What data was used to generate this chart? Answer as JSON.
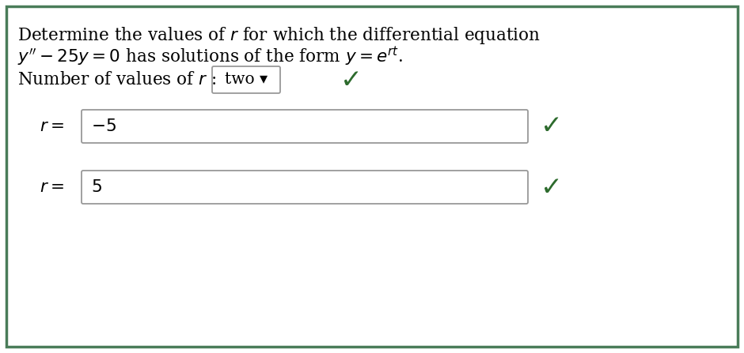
{
  "background_color": "#ffffff",
  "outer_border_color": "#4a7c59",
  "outer_border_linewidth": 2.5,
  "title_line1": "Determine the values of $r$ for which the differential equation",
  "title_line2": "$y'' - 25y = 0$ has solutions of the form $y = e^{rt}$.",
  "num_values_label": "Number of values of $r$ :",
  "num_values_answer": "two ▾",
  "r_label": "$r =$",
  "r1_value": "$-5$",
  "r2_value": "$5$",
  "check_color": "#2d6b2d",
  "box_border_color": "#999999",
  "text_color": "#000000",
  "font_size_main": 15.5,
  "font_size_answer": 15.5,
  "font_size_check": 24
}
